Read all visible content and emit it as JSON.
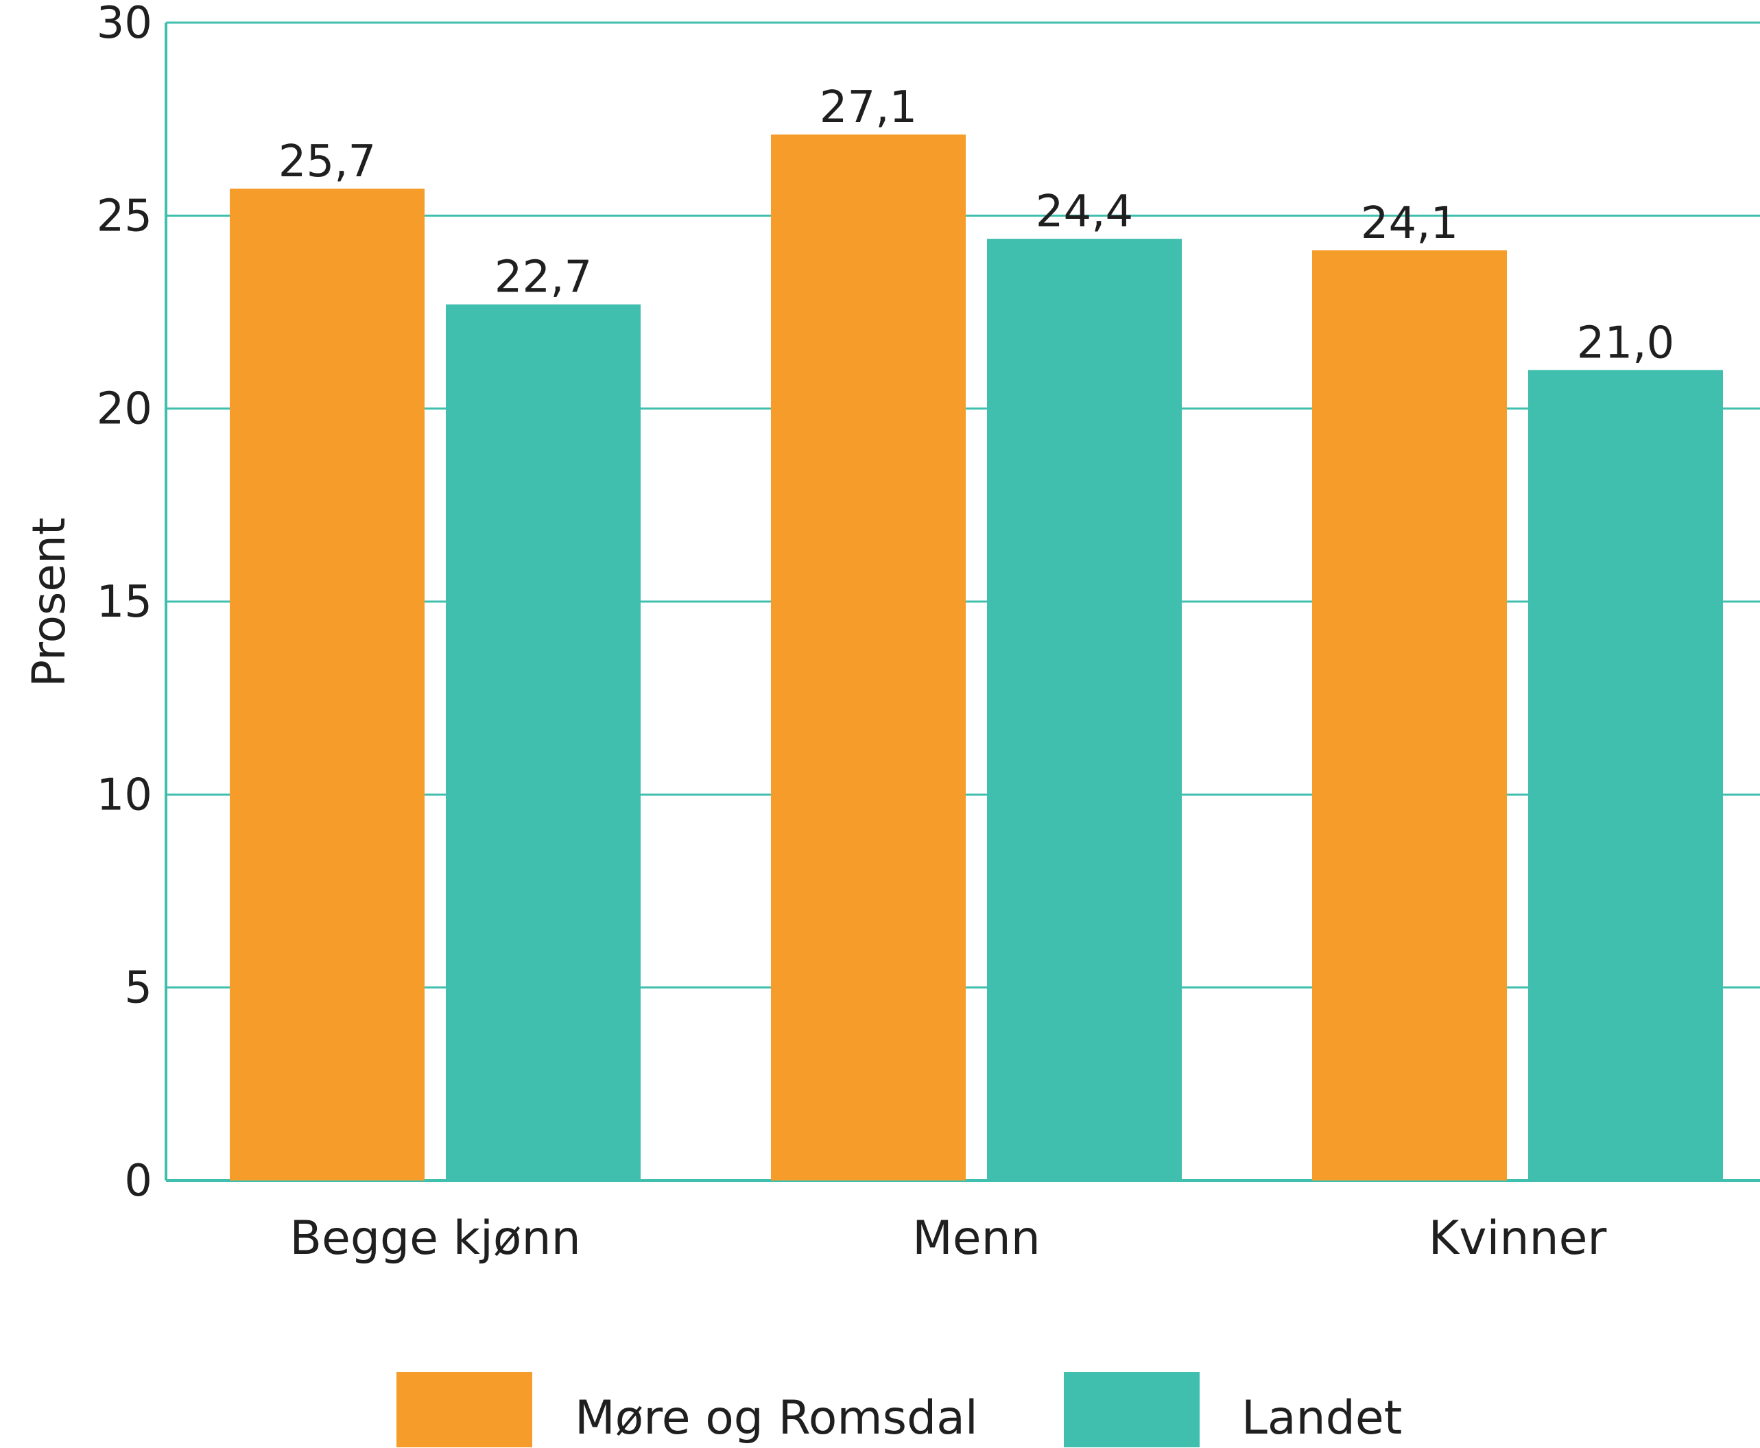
{
  "chart_data": {
    "type": "bar",
    "categories": [
      "Begge kjønn",
      "Menn",
      "Kvinner"
    ],
    "series": [
      {
        "name": "Møre og Romsdal",
        "values": [
          25.7,
          27.1,
          24.1
        ],
        "labels": [
          "25,7",
          "27,1",
          "24,1"
        ],
        "color": "#f59c2a"
      },
      {
        "name": "Landet",
        "values": [
          22.7,
          24.4,
          21.0
        ],
        "labels": [
          "22,7",
          "24,4",
          "21,0"
        ],
        "color": "#40bfae"
      }
    ],
    "title": "",
    "xlabel": "",
    "ylabel": "Prosent",
    "ylim": [
      0,
      30
    ],
    "yticks": [
      0,
      5,
      10,
      15,
      20,
      25,
      30
    ],
    "grid": true,
    "grid_color": "#40bfae",
    "legend_position": "bottom"
  }
}
